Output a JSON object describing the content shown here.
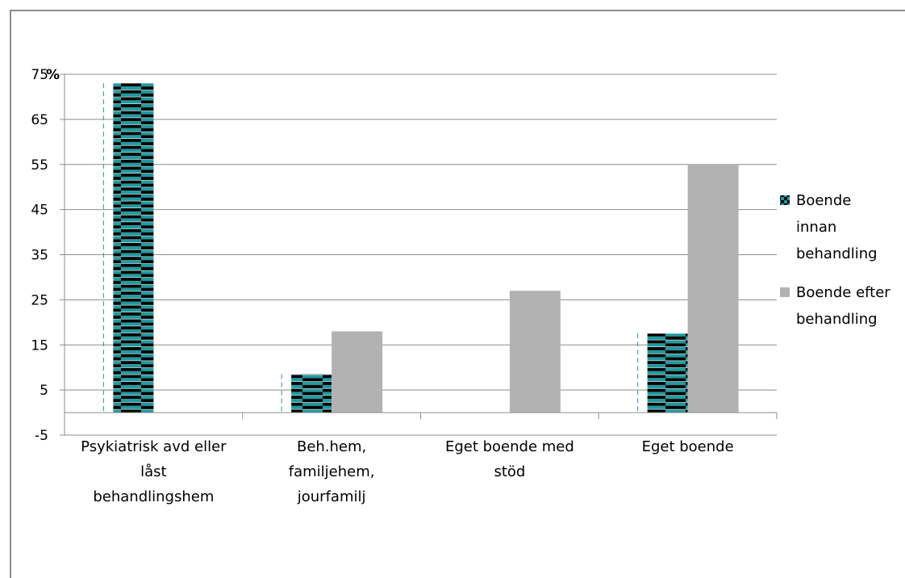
{
  "chart_data": {
    "type": "bar",
    "ylabel": "%",
    "ylim": [
      -5,
      75
    ],
    "yticks": [
      -5,
      5,
      15,
      25,
      35,
      45,
      55,
      65,
      75
    ],
    "grid": true,
    "legend_position": "right",
    "categories": [
      [
        "Psykiatrisk avd eller",
        "låst",
        "behandlingshem"
      ],
      [
        "Beh.hem,",
        "familjehem,",
        "jourfamilj"
      ],
      [
        "Eget boende med",
        "stöd"
      ],
      [
        "Eget boende"
      ]
    ],
    "series": [
      {
        "name": [
          "Boende",
          "innan",
          "behandling"
        ],
        "values": [
          73,
          8.5,
          0,
          17.5
        ],
        "color": "#1f9aa0",
        "pattern": "checker"
      },
      {
        "name": [
          "Boende efter",
          "behandling"
        ],
        "values": [
          0,
          18,
          27,
          55
        ],
        "color": "#b2b2b2",
        "pattern": "solid"
      }
    ]
  }
}
